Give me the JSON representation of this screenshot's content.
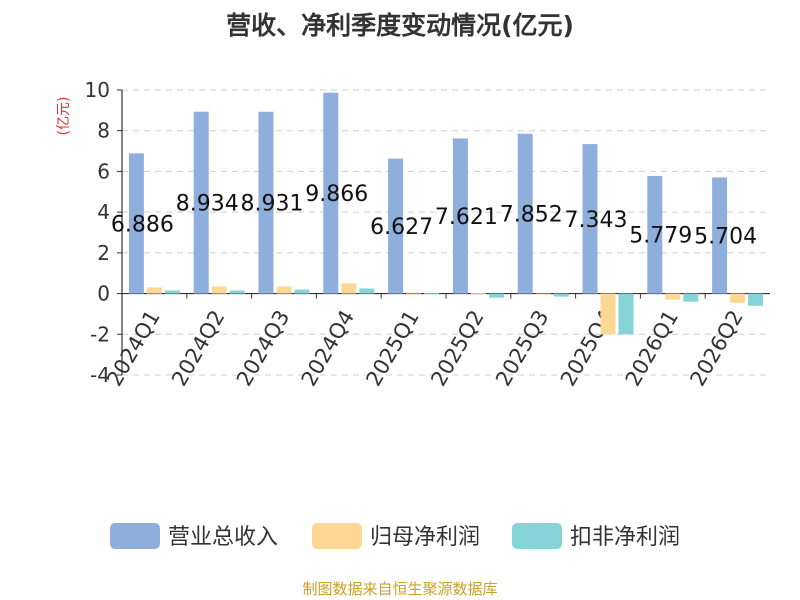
{
  "chart_data": {
    "type": "bar",
    "title": "营收、净利季度变动情况(亿元)",
    "ylabel": "(亿元)",
    "ylim": [
      -4,
      10
    ],
    "yticks": [
      -4,
      -2,
      0,
      2,
      4,
      6,
      8,
      10
    ],
    "categories": [
      "2024Q1",
      "2024Q2",
      "2024Q3",
      "2024Q4",
      "2025Q1",
      "2025Q2",
      "2025Q3",
      "2025Q4",
      "2026Q1",
      "2026Q2"
    ],
    "series": [
      {
        "name": "营业总收入",
        "color": "#8eaedc",
        "values": [
          6.886,
          8.934,
          8.931,
          9.866,
          6.627,
          7.621,
          7.852,
          7.343,
          5.779,
          5.704
        ]
      },
      {
        "name": "归母净利润",
        "color": "#fdd794",
        "values": [
          0.3,
          0.35,
          0.35,
          0.5,
          0.05,
          0.02,
          -0.02,
          -2.0,
          -0.3,
          -0.45
        ]
      },
      {
        "name": "扣非净利润",
        "color": "#86d4d8",
        "values": [
          0.15,
          0.15,
          0.2,
          0.25,
          0.02,
          -0.2,
          -0.15,
          -2.0,
          -0.4,
          -0.6
        ]
      }
    ],
    "data_labels": [
      "6.886",
      "8.934",
      "8.931",
      "9.866",
      "6.627",
      "7.621",
      "7.852",
      "7.343",
      "5.779",
      "5.704"
    ],
    "grid": true,
    "legend_position": "bottom"
  },
  "source_text": "制图数据来自恒生聚源数据库"
}
